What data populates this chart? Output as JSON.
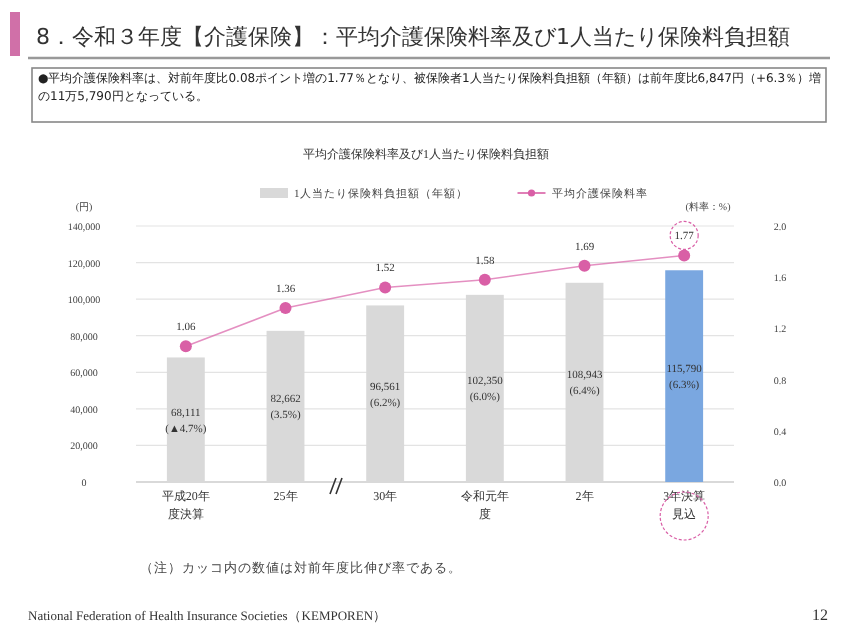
{
  "chart_data": {
    "type": "bar",
    "title": "8．令和３年度【介護保険】：平均介護保険料率及び1人当たり保険料負担額",
    "subtitle": "平均介護保険料率及び1人当たり保険料負担額",
    "categories": [
      "平成20年度決算",
      "25年",
      "30年",
      "令和元年度",
      "2年",
      "3年決算見込"
    ],
    "series": [
      {
        "name": "1人当たり保険料負担額（年額）",
        "color": "#d9d9d9",
        "colors": [
          "#d9d9d9",
          "#d9d9d9",
          "#d9d9d9",
          "#d9d9d9",
          "#d9d9d9",
          "#7aa7e0"
        ],
        "values": [
          68111,
          82662,
          96561,
          102350,
          108943,
          115790
        ],
        "value_labels": [
          "68,111\n(▲4.7%)",
          "82,662\n(3.5%)",
          "96,561\n(6.2%)",
          "102,350\n(6.0%)",
          "108,943\n(6.4%)",
          "115,790\n(6.3%)"
        ]
      },
      {
        "name": "平均介護保険料率",
        "type": "line",
        "axis": "y2",
        "color": "#d95fa6",
        "values": [
          1.06,
          1.36,
          1.52,
          1.58,
          1.69,
          1.77
        ],
        "value_labels": [
          "1.06",
          "1.36",
          "1.52",
          "1.58",
          "1.69",
          "1.77"
        ]
      }
    ],
    "ylabel": "(円)",
    "y2label": "(料率：%)",
    "ylim": [
      0,
      140000
    ],
    "yticks": [
      0,
      {
        "value": 20000,
        "label": "20,000"
      },
      {
        "value": 40000,
        "label": "40,000"
      },
      {
        "value": 60000,
        "label": "60,000"
      },
      {
        "value": 80000,
        "label": "80,000"
      },
      {
        "value": 100000,
        "label": "100,000"
      },
      {
        "value": 120000,
        "label": "120,000"
      },
      {
        "value": 140000,
        "label": "140,000"
      }
    ],
    "y2lim": [
      0,
      2.0
    ],
    "y2ticks": [
      {
        "value": 0,
        "label": "0.0"
      },
      {
        "value": 0.4,
        "label": "0.4"
      },
      {
        "value": 0.8,
        "label": "0.8"
      },
      {
        "value": 1.2,
        "label": "1.2"
      },
      {
        "value": 1.6,
        "label": "1.6"
      },
      {
        "value": 2.0,
        "label": "2.0"
      }
    ],
    "grid": "y",
    "legend": "top",
    "marker": "circle",
    "annotations": [
      "●平均介護保険料率は、対前年度比0.08ポイント増の1.77％となり、被保険者1人当たり保険料負担額（年額）は前年度比6,847円（+6.3％）増の11万5,790円となっている。",
      "（注）カッコ内の数値は対前年度比伸び率である。",
      "National Federation of Health Insurance Societies（KEMPOREN）",
      "12"
    ]
  }
}
